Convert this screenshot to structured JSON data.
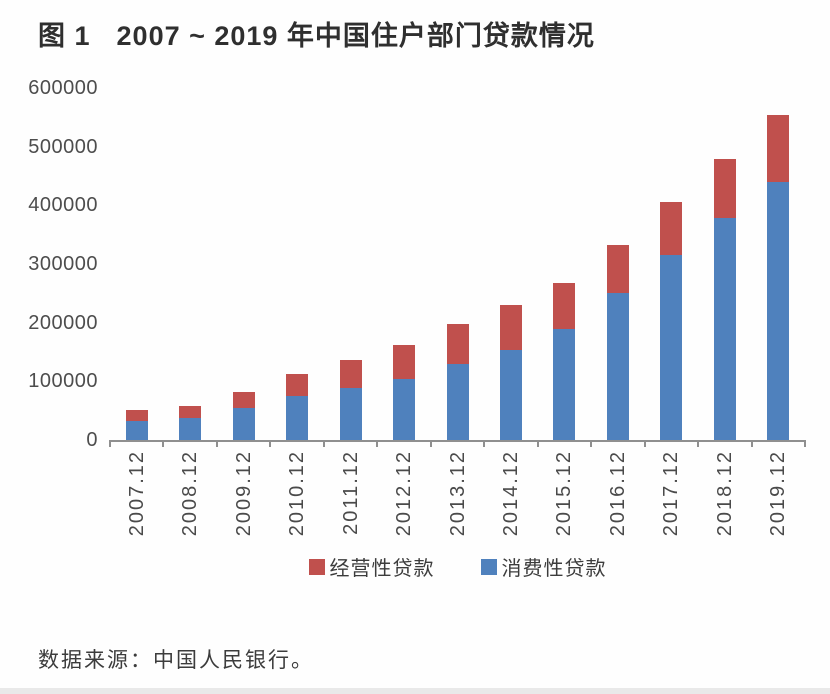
{
  "figure": {
    "label": "图 1",
    "title": "2007 ~ 2019 年中国住户部门贷款情况"
  },
  "source_note": "数据来源：中国人民银行。",
  "colors": {
    "consumer_blue": "#4f81bd",
    "operating_red": "#c0504d",
    "axis_gray": "#8f8f8f",
    "text_gray": "#4a4a4a"
  },
  "chart_data": {
    "type": "bar",
    "stacked": true,
    "title": "图 1 2007 ~ 2019 年中国住户部门贷款情况",
    "xlabel": "",
    "ylabel": "",
    "categories": [
      "2007.12",
      "2008.12",
      "2009.12",
      "2010.12",
      "2011.12",
      "2012.12",
      "2013.12",
      "2014.12",
      "2015.12",
      "2016.12",
      "2017.12",
      "2018.12",
      "2019.12"
    ],
    "series": [
      {
        "name": "消费性贷款",
        "color": "#4f81bd",
        "stack_order": "bottom",
        "values": [
          32700,
          37300,
          55300,
          75100,
          88900,
          104400,
          129700,
          154100,
          189500,
          250600,
          315200,
          377900,
          439700
        ]
      },
      {
        "name": "经营性贷款",
        "color": "#c0504d",
        "stack_order": "top",
        "values": [
          17900,
          19900,
          26500,
          37400,
          46800,
          56900,
          68000,
          75400,
          77700,
          82100,
          90600,
          100600,
          113600
        ]
      }
    ],
    "totals": [
      50600,
      57200,
      81800,
      112500,
      135700,
      161300,
      197700,
      229500,
      267200,
      332700,
      405800,
      478500,
      553300
    ],
    "ylim": [
      0,
      600000
    ],
    "y_ticks": [
      0,
      100000,
      200000,
      300000,
      400000,
      500000,
      600000
    ],
    "grid": false,
    "legend_position": "bottom",
    "legend": [
      {
        "label": "经营性贷款",
        "color": "#c0504d"
      },
      {
        "label": "消费性贷款",
        "color": "#4f81bd"
      }
    ]
  }
}
